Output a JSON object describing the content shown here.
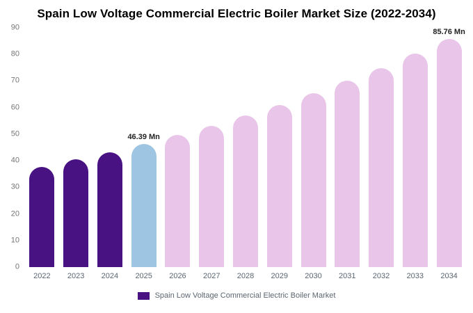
{
  "title": "Spain Low Voltage Commercial Electric Boiler Market Size (2022-2034)",
  "chart_data": {
    "type": "bar",
    "title": "Spain Low Voltage Commercial Electric Boiler Market Size (2022-2034)",
    "categories": [
      "2022",
      "2023",
      "2024",
      "2025",
      "2026",
      "2027",
      "2028",
      "2029",
      "2030",
      "2031",
      "2032",
      "2033",
      "2034"
    ],
    "values": [
      37.8,
      40.5,
      43.3,
      46.39,
      49.7,
      53.2,
      57.0,
      61.0,
      65.3,
      70.0,
      74.9,
      80.2,
      85.76
    ],
    "bar_colors": [
      "#491283",
      "#491283",
      "#491283",
      "#9ec5e2",
      "#e9c5e9",
      "#e9c5e9",
      "#e9c5e9",
      "#e9c5e9",
      "#e9c5e9",
      "#e9c5e9",
      "#e9c5e9",
      "#e9c5e9",
      "#e9c5e9"
    ],
    "xlabel": "",
    "ylabel": "",
    "ylim": [
      0,
      90
    ],
    "yticks": [
      0,
      10,
      20,
      30,
      40,
      50,
      60,
      70,
      80,
      90
    ],
    "grid": false,
    "annotations": [
      {
        "index": 3,
        "text": "46.39 Mn"
      },
      {
        "index": 12,
        "text": "85.76 Mn"
      }
    ],
    "legend": [
      {
        "label": "Spain Low Voltage Commercial Electric Boiler Market",
        "color": "#491283"
      }
    ],
    "legend_position": "bottom-center"
  }
}
